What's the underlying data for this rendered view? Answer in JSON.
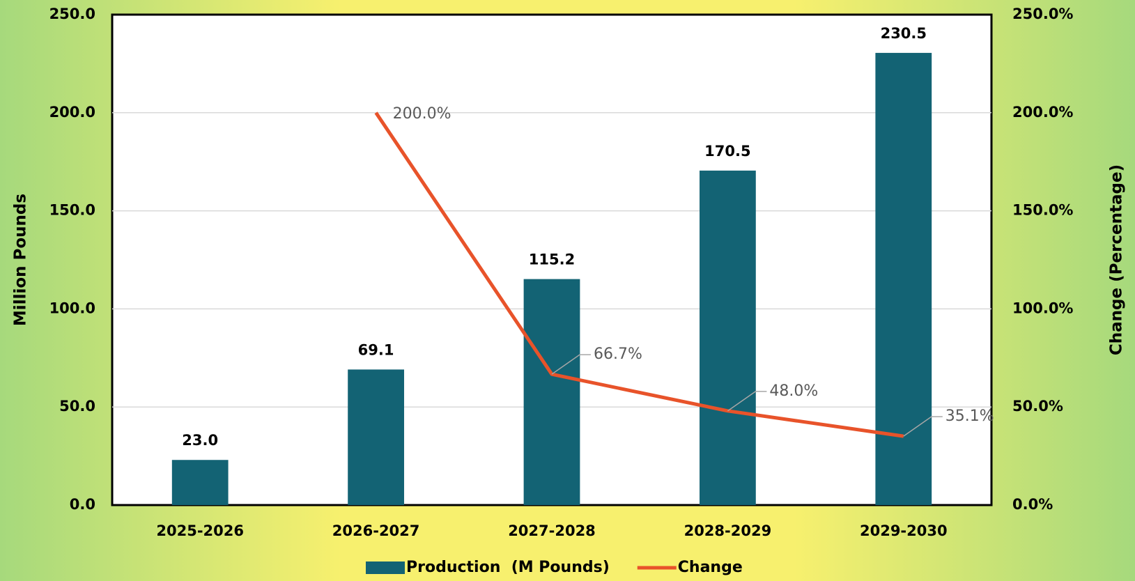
{
  "chart_data": {
    "type": "bar",
    "categories": [
      "2025-2026",
      "2026-2027",
      "2027-2028",
      "2028-2029",
      "2029-2030"
    ],
    "ylabel": "Million Pounds",
    "y2label": "Change (Percentage)",
    "ylim": [
      0,
      250
    ],
    "yticks": [
      {
        "value": 0,
        "label": "0.0"
      },
      {
        "value": 50,
        "label": "50.0"
      },
      {
        "value": 100,
        "label": "100.0"
      },
      {
        "value": 150,
        "label": "150.0"
      },
      {
        "value": 200,
        "label": "200.0"
      },
      {
        "value": 250,
        "label": "250.0"
      }
    ],
    "y2lim": [
      0,
      250
    ],
    "y2ticks": [
      {
        "value": 0,
        "label": "0.0%"
      },
      {
        "value": 50,
        "label": "50.0%"
      },
      {
        "value": 100,
        "label": "100.0%"
      },
      {
        "value": 150,
        "label": "150.0%"
      },
      {
        "value": 200,
        "label": "200.0%"
      },
      {
        "value": 250,
        "label": "250.0%"
      }
    ],
    "grid": true,
    "legend": "bottom",
    "series": [
      {
        "name": "Production  (M Pounds)",
        "type": "bar",
        "color": "#136374",
        "values": [
          23.0,
          69.1,
          115.2,
          170.5,
          230.5
        ],
        "value_labels": [
          "23.0",
          "69.1",
          "115.2",
          "170.5",
          "230.5"
        ]
      },
      {
        "name": "Change",
        "type": "line",
        "axis": "y2",
        "color": "#e8532a",
        "values": [
          null,
          200.0,
          66.7,
          48.0,
          35.1
        ],
        "value_labels": [
          null,
          "200.0%",
          "66.7%",
          "48.0%",
          "35.1%"
        ]
      }
    ]
  }
}
